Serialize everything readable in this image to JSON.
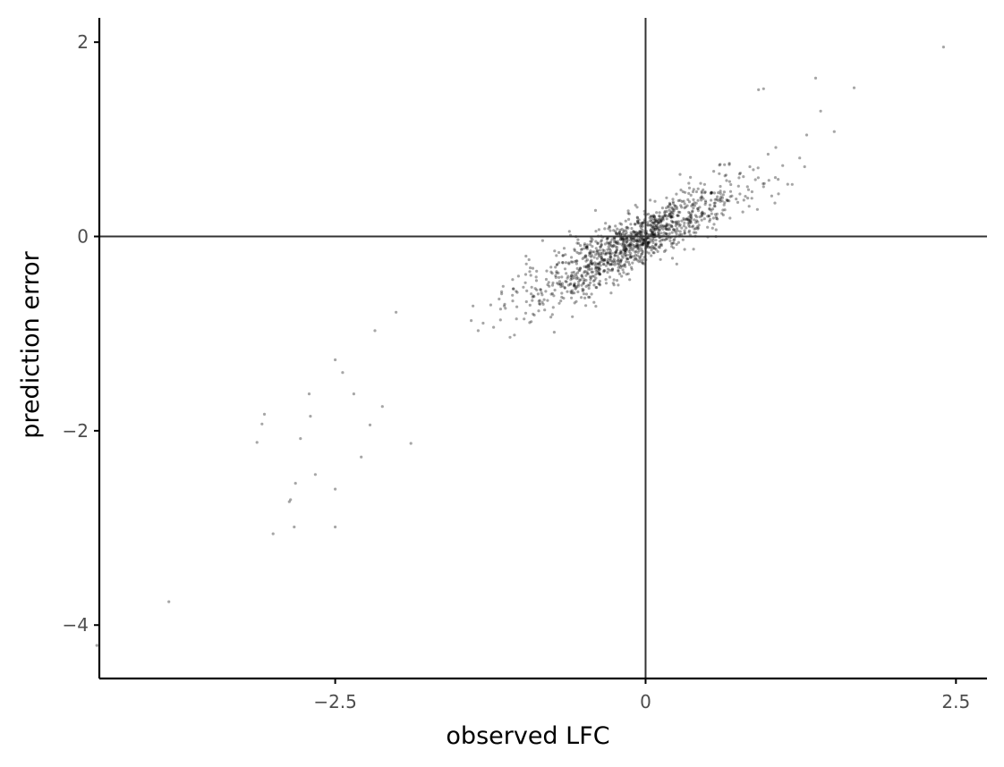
{
  "chart_data": {
    "type": "scatter",
    "title": "",
    "xlabel": "observed LFC",
    "ylabel": "prediction error",
    "xlim": [
      -4.4,
      2.75
    ],
    "ylim": [
      -4.55,
      2.25
    ],
    "xticks": [
      {
        "value": -2.5,
        "label": "−2.5"
      },
      {
        "value": 0,
        "label": "0"
      },
      {
        "value": 2.5,
        "label": "2.5"
      }
    ],
    "yticks": [
      {
        "value": -4,
        "label": "−4"
      },
      {
        "value": -2,
        "label": "−2"
      },
      {
        "value": 0,
        "label": "0"
      },
      {
        "value": 2,
        "label": "2"
      }
    ],
    "reference_lines": {
      "h": 0,
      "v": 0
    },
    "grid": false,
    "point_color": "#000000",
    "point_opacity": 0.35,
    "line_color": "#333333",
    "explicit_points": [
      [
        2.4,
        1.95
      ],
      [
        1.37,
        1.63
      ],
      [
        1.68,
        1.53
      ],
      [
        0.95,
        1.52
      ],
      [
        0.91,
        1.51
      ],
      [
        1.41,
        1.29
      ],
      [
        1.52,
        1.08
      ],
      [
        -3.84,
        -3.76
      ],
      [
        -4.42,
        -4.21
      ],
      [
        -3.0,
        -3.06
      ],
      [
        -2.83,
        -2.99
      ],
      [
        -2.5,
        -2.99
      ],
      [
        -2.87,
        -2.73
      ],
      [
        -2.86,
        -2.71
      ],
      [
        -2.82,
        -2.54
      ],
      [
        -2.5,
        -2.6
      ],
      [
        -2.66,
        -2.45
      ],
      [
        -2.29,
        -2.27
      ],
      [
        -3.13,
        -2.12
      ],
      [
        -1.89,
        -2.13
      ],
      [
        -2.78,
        -2.08
      ],
      [
        -3.09,
        -1.93
      ],
      [
        -2.22,
        -1.94
      ],
      [
        -3.07,
        -1.83
      ],
      [
        -2.7,
        -1.85
      ],
      [
        -2.71,
        -1.62
      ],
      [
        -2.35,
        -1.62
      ],
      [
        -2.12,
        -1.75
      ],
      [
        -2.5,
        -1.27
      ],
      [
        -2.44,
        -1.4
      ],
      [
        -2.18,
        -0.97
      ],
      [
        -2.01,
        -0.78
      ]
    ],
    "cloud": {
      "n_points": 1250,
      "seed": 7,
      "x_center": -0.1,
      "x_spread": 0.55,
      "slope": 0.62,
      "residual_sd": 0.13
    }
  }
}
